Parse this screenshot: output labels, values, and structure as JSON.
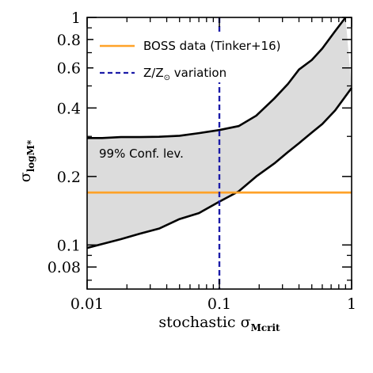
{
  "chart_data": {
    "type": "line",
    "x_scale": "log",
    "y_scale": "log",
    "xlim": [
      0.01,
      1
    ],
    "ylim": [
      0.064,
      1
    ],
    "grid": false,
    "xlabel_main": "stochastic σ",
    "xlabel_sub": "Mcrit",
    "ylabel_main": "σ",
    "ylabel_sub": "logM*",
    "x_ticks": [
      {
        "value": 0.01,
        "label": "0.01"
      },
      {
        "value": 0.1,
        "label": "0.1"
      },
      {
        "value": 1,
        "label": "1"
      }
    ],
    "y_ticks": [
      {
        "value": 0.08,
        "label": "0.08"
      },
      {
        "value": 0.1,
        "label": "0.1"
      },
      {
        "value": 0.2,
        "label": "0.2"
      },
      {
        "value": 0.4,
        "label": "0.4"
      },
      {
        "value": 0.6,
        "label": "0.6"
      },
      {
        "value": 0.8,
        "label": "0.8"
      },
      {
        "value": 1,
        "label": "1"
      }
    ],
    "confidence_band": {
      "label": "99% Conf. lev.",
      "fill": "#dcdcdc",
      "upper": {
        "x": [
          0.01,
          0.013,
          0.018,
          0.025,
          0.035,
          0.05,
          0.07,
          0.1,
          0.14,
          0.19,
          0.26,
          0.33,
          0.4,
          0.5,
          0.6,
          0.75,
          0.9
        ],
        "y": [
          0.295,
          0.295,
          0.298,
          0.298,
          0.299,
          0.302,
          0.31,
          0.32,
          0.333,
          0.37,
          0.44,
          0.51,
          0.59,
          0.65,
          0.73,
          0.87,
          1.0
        ]
      },
      "lower": {
        "x": [
          0.01,
          0.013,
          0.018,
          0.025,
          0.035,
          0.05,
          0.07,
          0.1,
          0.14,
          0.19,
          0.26,
          0.33,
          0.4,
          0.5,
          0.6,
          0.75,
          1.0
        ],
        "y": [
          0.097,
          0.101,
          0.106,
          0.112,
          0.118,
          0.13,
          0.138,
          0.155,
          0.172,
          0.2,
          0.228,
          0.256,
          0.28,
          0.312,
          0.34,
          0.39,
          0.49
        ]
      }
    },
    "series": [
      {
        "name": "BOSS data (Tinker+16)",
        "kind": "hline",
        "y": 0.17,
        "color": "#ffa228",
        "dash": "solid"
      },
      {
        "name": "Z/Z",
        "name_sub": "⊙",
        "name_suffix": " variation",
        "kind": "vline",
        "x": 0.1,
        "color": "#1c1ca8",
        "dash": "dashed"
      }
    ],
    "legend": {
      "placement": "top-left"
    }
  }
}
